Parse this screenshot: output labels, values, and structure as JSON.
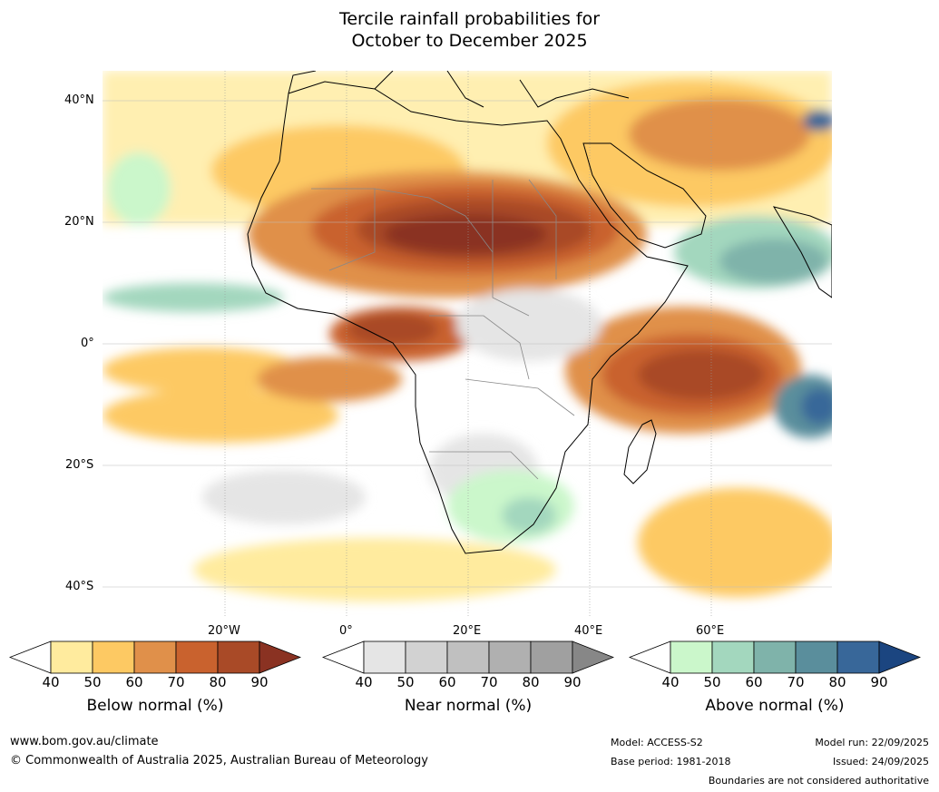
{
  "title": {
    "line1": "Tercile rainfall probabilities for",
    "line2": "October to December 2025"
  },
  "map": {
    "lat_labels": [
      "40°N",
      "20°N",
      "0°",
      "20°S",
      "40°S"
    ],
    "lon_labels": [
      "20°W",
      "0°",
      "20°E",
      "40°E",
      "60°E"
    ]
  },
  "legends": [
    {
      "label": "Below normal (%)",
      "ticks": [
        "40",
        "50",
        "60",
        "70",
        "80",
        "90"
      ],
      "colors": [
        "#ffeb9e",
        "#fdc963",
        "#e0904a",
        "#c9622e",
        "#a94a27",
        "#8a3222"
      ]
    },
    {
      "label": "Near normal (%)",
      "ticks": [
        "40",
        "50",
        "60",
        "70",
        "80",
        "90"
      ],
      "colors": [
        "#e5e5e5",
        "#d2d2d2",
        "#c0c0c0",
        "#b0b0b0",
        "#a0a0a0",
        "#878787"
      ]
    },
    {
      "label": "Above normal (%)",
      "ticks": [
        "40",
        "50",
        "60",
        "70",
        "80",
        "90"
      ],
      "colors": [
        "#cbf7cb",
        "#a3d7be",
        "#7fb3aa",
        "#5a8e9c",
        "#386799",
        "#1b4580"
      ]
    }
  ],
  "footer": {
    "website": "www.bom.gov.au/climate",
    "copyright": "© Commonwealth of Australia 2025, Australian Bureau of Meteorology",
    "model": "Model: ACCESS-S2",
    "base_period": "Base period: 1981-2018",
    "model_run": "Model run: 22/09/2025",
    "issued": "Issued: 24/09/2025",
    "disclaimer": "Boundaries are not considered authoritative"
  }
}
